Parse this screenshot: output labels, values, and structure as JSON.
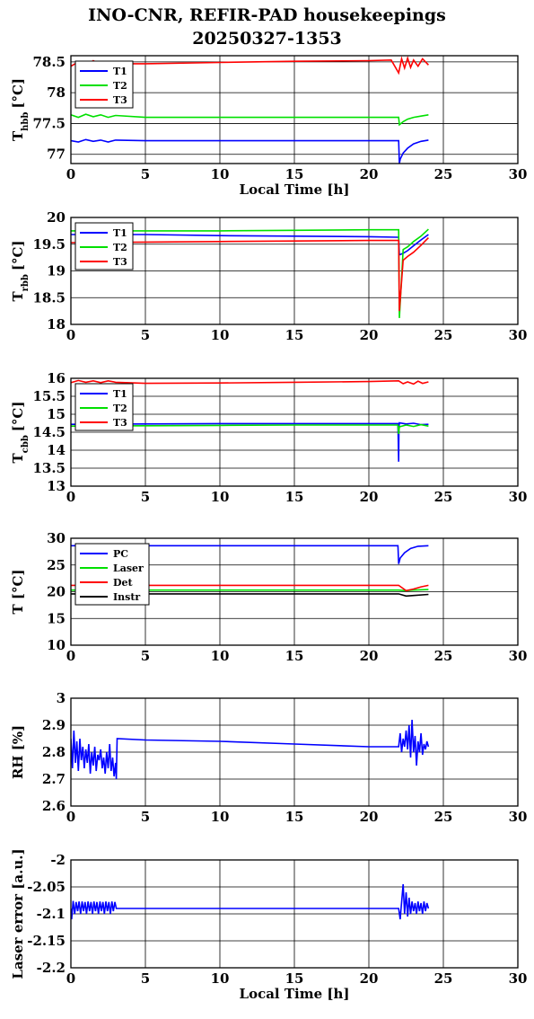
{
  "title": {
    "line1": "INO-CNR, REFIR-PAD housekeepings",
    "line2": "20250327-1353"
  },
  "chart_data": [
    {
      "type": "line",
      "id": "t_hbb",
      "ylabel": "T",
      "ylabel_sub": "hbb",
      "ylabel_unit": "[°C]",
      "xlabel": "Local Time [h]",
      "xlim": [
        0,
        30
      ],
      "ylim": [
        76.85,
        78.6
      ],
      "xticks": [
        "0",
        "5",
        "10",
        "15",
        "20",
        "25",
        "30"
      ],
      "yticks": [
        {
          "v": 77,
          "t": "77"
        },
        {
          "v": 77.5,
          "t": "77.5"
        },
        {
          "v": 78,
          "t": "78"
        },
        {
          "v": 78.5,
          "t": "78.5"
        }
      ],
      "grid": true,
      "legend_position": "top-left",
      "series": [
        {
          "name": "T1",
          "color": "#0000ff",
          "x": [
            0,
            0.5,
            1,
            1.5,
            2,
            2.5,
            3,
            5,
            10,
            15,
            20,
            21.5,
            22,
            22.05,
            22.1,
            22.3,
            22.6,
            23,
            23.5,
            24
          ],
          "y": [
            77.22,
            77.2,
            77.24,
            77.21,
            77.23,
            77.2,
            77.23,
            77.22,
            77.22,
            77.22,
            77.22,
            77.22,
            77.22,
            76.85,
            76.92,
            77.02,
            77.1,
            77.17,
            77.21,
            77.23
          ]
        },
        {
          "name": "T2",
          "color": "#00e000",
          "x": [
            0,
            0.5,
            1,
            1.5,
            2,
            2.5,
            3,
            5,
            10,
            15,
            20,
            21.5,
            22,
            22.05,
            22.3,
            22.6,
            23,
            23.5,
            24
          ],
          "y": [
            77.64,
            77.6,
            77.65,
            77.61,
            77.64,
            77.6,
            77.63,
            77.6,
            77.6,
            77.6,
            77.6,
            77.6,
            77.6,
            77.48,
            77.53,
            77.57,
            77.6,
            77.62,
            77.64
          ]
        },
        {
          "name": "T3",
          "color": "#ff0000",
          "x": [
            0,
            0.5,
            1,
            1.5,
            2,
            2.5,
            3,
            5,
            10,
            15,
            20,
            21.5,
            22,
            22.2,
            22.4,
            22.6,
            22.8,
            23,
            23.3,
            23.6,
            24
          ],
          "y": [
            78.43,
            78.5,
            78.45,
            78.52,
            78.46,
            78.5,
            78.47,
            78.47,
            78.49,
            78.51,
            78.52,
            78.53,
            78.32,
            78.55,
            78.4,
            78.56,
            78.41,
            78.53,
            78.43,
            78.55,
            78.45
          ]
        }
      ]
    },
    {
      "type": "line",
      "id": "t_rbb",
      "ylabel": "T",
      "ylabel_sub": "rbb",
      "ylabel_unit": "[°C]",
      "xlabel": "",
      "xlim": [
        0,
        30
      ],
      "ylim": [
        18,
        20
      ],
      "xticks": [
        "0",
        "5",
        "10",
        "15",
        "20",
        "25",
        "30"
      ],
      "yticks": [
        {
          "v": 18,
          "t": "18"
        },
        {
          "v": 18.5,
          "t": "18.5"
        },
        {
          "v": 19,
          "t": "19"
        },
        {
          "v": 19.5,
          "t": "19.5"
        },
        {
          "v": 20,
          "t": "20"
        }
      ],
      "grid": true,
      "legend_position": "top-left",
      "series": [
        {
          "name": "T1",
          "color": "#0000ff",
          "x": [
            0,
            5,
            10,
            15,
            20,
            21.9,
            22,
            22.05,
            22.3,
            22.6,
            23,
            23.5,
            24
          ],
          "y": [
            19.68,
            19.68,
            19.66,
            19.65,
            19.64,
            19.63,
            19.63,
            19.3,
            19.33,
            19.38,
            19.47,
            19.58,
            19.68
          ]
        },
        {
          "name": "T2",
          "color": "#00e000",
          "x": [
            0,
            5,
            10,
            15,
            20,
            21.9,
            22,
            22.05,
            22.3,
            22.6,
            23,
            23.5,
            24
          ],
          "y": [
            19.75,
            19.75,
            19.75,
            19.76,
            19.77,
            19.77,
            19.77,
            18.12,
            19.4,
            19.45,
            19.55,
            19.65,
            19.78
          ]
        },
        {
          "name": "T3",
          "color": "#ff0000",
          "x": [
            0,
            5,
            10,
            15,
            20,
            21.9,
            22,
            22.05,
            22.3,
            22.6,
            23,
            23.5,
            24
          ],
          "y": [
            19.53,
            19.54,
            19.55,
            19.56,
            19.57,
            19.57,
            19.57,
            18.25,
            19.2,
            19.27,
            19.35,
            19.48,
            19.62
          ]
        }
      ]
    },
    {
      "type": "line",
      "id": "t_cbb",
      "ylabel": "T",
      "ylabel_sub": "cbb",
      "ylabel_unit": "[°C]",
      "xlabel": "",
      "xlim": [
        0,
        30
      ],
      "ylim": [
        13,
        16
      ],
      "xticks": [
        "0",
        "5",
        "10",
        "15",
        "20",
        "25",
        "30"
      ],
      "yticks": [
        {
          "v": 13,
          "t": "13"
        },
        {
          "v": 13.5,
          "t": "13.5"
        },
        {
          "v": 14,
          "t": "14"
        },
        {
          "v": 14.5,
          "t": "14.5"
        },
        {
          "v": 15,
          "t": "15"
        },
        {
          "v": 15.5,
          "t": "15.5"
        },
        {
          "v": 16,
          "t": "16"
        }
      ],
      "grid": true,
      "legend_position": "top-left",
      "series": [
        {
          "name": "T1",
          "color": "#0000ff",
          "x": [
            0,
            5,
            10,
            15,
            20,
            21.95,
            22,
            22.02,
            22.05,
            22.5,
            23,
            23.5,
            24
          ],
          "y": [
            14.72,
            14.73,
            14.74,
            14.74,
            14.74,
            14.74,
            13.68,
            14.6,
            14.76,
            14.73,
            14.75,
            14.71,
            14.72
          ]
        },
        {
          "name": "T2",
          "color": "#00e000",
          "x": [
            0,
            5,
            10,
            15,
            20,
            21.95,
            22,
            22.05,
            22.5,
            23,
            23.5,
            24
          ],
          "y": [
            14.67,
            14.68,
            14.69,
            14.7,
            14.7,
            14.7,
            14.45,
            14.65,
            14.7,
            14.66,
            14.71,
            14.67
          ]
        },
        {
          "name": "T3",
          "color": "#ff0000",
          "x": [
            0,
            0.5,
            1,
            1.5,
            2,
            2.5,
            3,
            5,
            10,
            15,
            20,
            22,
            22.3,
            22.6,
            23,
            23.3,
            23.6,
            24
          ],
          "y": [
            15.88,
            15.94,
            15.89,
            15.93,
            15.88,
            15.93,
            15.89,
            15.86,
            15.87,
            15.89,
            15.91,
            15.93,
            15.85,
            15.9,
            15.84,
            15.92,
            15.86,
            15.9
          ]
        }
      ]
    },
    {
      "type": "line",
      "id": "t_instr",
      "ylabel": "T [°C]",
      "ylabel_sub": "",
      "ylabel_unit": "",
      "xlabel": "",
      "xlim": [
        0,
        30
      ],
      "ylim": [
        10,
        30
      ],
      "xticks": [
        "0",
        "5",
        "10",
        "15",
        "20",
        "25",
        "30"
      ],
      "yticks": [
        {
          "v": 10,
          "t": "10"
        },
        {
          "v": 15,
          "t": "15"
        },
        {
          "v": 20,
          "t": "20"
        },
        {
          "v": 25,
          "t": "25"
        },
        {
          "v": 30,
          "t": "30"
        }
      ],
      "grid": true,
      "legend_position": "top-left",
      "series": [
        {
          "name": "PC",
          "color": "#0000ff",
          "x": [
            0,
            5,
            10,
            15,
            20,
            21.95,
            22,
            22.1,
            22.4,
            22.8,
            23.3,
            24
          ],
          "y": [
            28.6,
            28.6,
            28.6,
            28.6,
            28.6,
            28.6,
            25.2,
            26.3,
            27.3,
            28.1,
            28.5,
            28.6
          ]
        },
        {
          "name": "Laser",
          "color": "#00e000",
          "x": [
            0,
            5,
            10,
            15,
            20,
            22,
            22.5,
            23,
            24
          ],
          "y": [
            20.3,
            20.3,
            20.3,
            20.3,
            20.3,
            20.3,
            20.2,
            20.3,
            20.4
          ]
        },
        {
          "name": "Det",
          "color": "#ff0000",
          "x": [
            0,
            5,
            10,
            15,
            20,
            22,
            22.5,
            23,
            23.5,
            24
          ],
          "y": [
            21.2,
            21.2,
            21.2,
            21.2,
            21.2,
            21.2,
            20.2,
            20.5,
            20.9,
            21.2
          ]
        },
        {
          "name": "Instr",
          "color": "#000000",
          "x": [
            0,
            5,
            10,
            15,
            20,
            22,
            22.5,
            23,
            24
          ],
          "y": [
            19.6,
            19.6,
            19.6,
            19.6,
            19.6,
            19.6,
            19.2,
            19.3,
            19.5
          ]
        }
      ]
    },
    {
      "type": "line",
      "id": "rh",
      "ylabel": "RH [%]",
      "ylabel_sub": "",
      "ylabel_unit": "",
      "xlabel": "",
      "xlim": [
        0,
        30
      ],
      "ylim": [
        2.6,
        3
      ],
      "xticks": [
        "0",
        "5",
        "10",
        "15",
        "20",
        "25",
        "30"
      ],
      "yticks": [
        {
          "v": 2.6,
          "t": "2.6"
        },
        {
          "v": 2.7,
          "t": "2.7"
        },
        {
          "v": 2.8,
          "t": "2.8"
        },
        {
          "v": 2.9,
          "t": "2.9"
        },
        {
          "v": 3,
          "t": "3"
        }
      ],
      "grid": true,
      "legend_position": "none",
      "series": [
        {
          "name": "",
          "color": "#0000ff",
          "x": [
            0,
            0.1,
            0.2,
            0.3,
            0.4,
            0.5,
            0.6,
            0.7,
            0.8,
            0.9,
            1,
            1.1,
            1.2,
            1.3,
            1.4,
            1.5,
            1.6,
            1.7,
            1.8,
            1.9,
            2,
            2.1,
            2.2,
            2.3,
            2.4,
            2.5,
            2.6,
            2.7,
            2.8,
            2.9,
            3,
            3.05,
            3.1,
            5,
            10,
            15,
            20,
            22,
            22.1,
            22.2,
            22.3,
            22.4,
            22.5,
            22.6,
            22.7,
            22.8,
            22.9,
            23,
            23.1,
            23.2,
            23.3,
            23.4,
            23.5,
            23.6,
            23.7,
            23.8,
            23.9,
            24
          ],
          "y": [
            2.85,
            2.74,
            2.88,
            2.76,
            2.84,
            2.73,
            2.85,
            2.77,
            2.82,
            2.74,
            2.81,
            2.76,
            2.83,
            2.72,
            2.8,
            2.75,
            2.82,
            2.73,
            2.79,
            2.77,
            2.81,
            2.74,
            2.78,
            2.72,
            2.8,
            2.74,
            2.83,
            2.73,
            2.78,
            2.71,
            2.76,
            2.7,
            2.85,
            2.845,
            2.84,
            2.83,
            2.82,
            2.82,
            2.87,
            2.8,
            2.85,
            2.82,
            2.88,
            2.81,
            2.9,
            2.78,
            2.92,
            2.8,
            2.86,
            2.75,
            2.84,
            2.8,
            2.87,
            2.79,
            2.83,
            2.81,
            2.84,
            2.82
          ]
        }
      ]
    },
    {
      "type": "line",
      "id": "laser_err",
      "ylabel": "Laser error [a.u.]",
      "ylabel_sub": "",
      "ylabel_unit": "",
      "xlabel": "Local Time [h]",
      "xlim": [
        0,
        30
      ],
      "ylim": [
        -2.2,
        -2
      ],
      "xticks": [
        "0",
        "5",
        "10",
        "15",
        "20",
        "25",
        "30"
      ],
      "yticks": [
        {
          "v": -2.2,
          "t": "-2.2"
        },
        {
          "v": -2.15,
          "t": "-2.15"
        },
        {
          "v": -2.1,
          "t": "-2.1"
        },
        {
          "v": -2.05,
          "t": "-2.05"
        },
        {
          "v": -2,
          "t": "-2"
        }
      ],
      "grid": true,
      "legend_position": "none",
      "series": [
        {
          "name": "",
          "color": "#0000ff",
          "x": [
            0,
            0.05,
            0.15,
            0.25,
            0.35,
            0.45,
            0.55,
            0.65,
            0.75,
            0.85,
            0.95,
            1.05,
            1.15,
            1.25,
            1.35,
            1.45,
            1.55,
            1.65,
            1.75,
            1.85,
            1.95,
            2.05,
            2.15,
            2.25,
            2.35,
            2.45,
            2.55,
            2.65,
            2.75,
            2.85,
            2.95,
            3.05,
            5,
            10,
            15,
            20,
            22,
            22.1,
            22.2,
            22.3,
            22.4,
            22.5,
            22.6,
            22.7,
            22.8,
            22.9,
            23,
            23.1,
            23.2,
            23.3,
            23.4,
            23.5,
            23.6,
            23.7,
            23.8,
            23.9,
            24
          ],
          "y": [
            -2.09,
            -2.11,
            -2.076,
            -2.1,
            -2.078,
            -2.095,
            -2.077,
            -2.1,
            -2.077,
            -2.095,
            -2.078,
            -2.1,
            -2.077,
            -2.095,
            -2.078,
            -2.1,
            -2.077,
            -2.095,
            -2.078,
            -2.1,
            -2.077,
            -2.095,
            -2.078,
            -2.1,
            -2.077,
            -2.095,
            -2.078,
            -2.1,
            -2.077,
            -2.095,
            -2.078,
            -2.09,
            -2.09,
            -2.09,
            -2.09,
            -2.09,
            -2.09,
            -2.11,
            -2.078,
            -2.045,
            -2.1,
            -2.06,
            -2.105,
            -2.07,
            -2.1,
            -2.077,
            -2.095,
            -2.08,
            -2.1,
            -2.077,
            -2.095,
            -2.08,
            -2.1,
            -2.077,
            -2.095,
            -2.08,
            -2.09
          ]
        }
      ]
    }
  ]
}
